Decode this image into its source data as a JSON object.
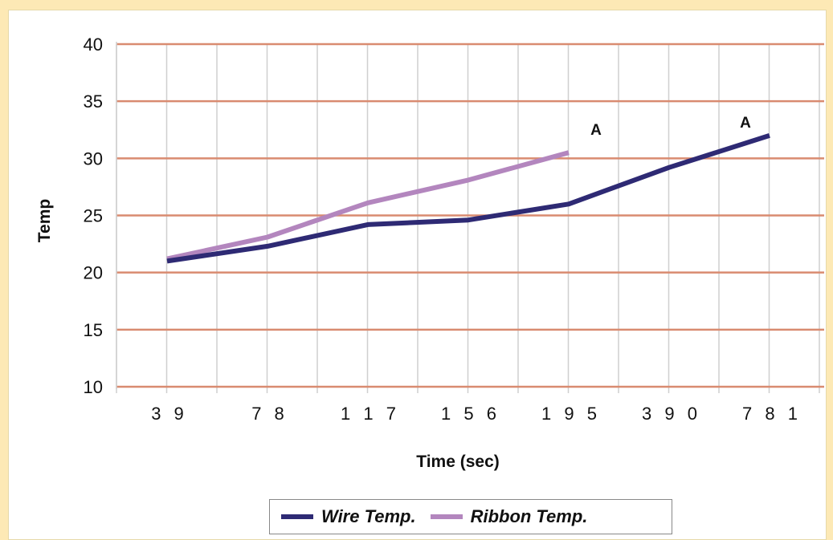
{
  "colors": {
    "page_background": "#FDE9B5",
    "plot_background": "#FFFFFF",
    "gridline_major": "#D98B70",
    "gridline_minor": "#CFCFCF",
    "wire": "#2E2A74",
    "ribbon": "#B386BE"
  },
  "chart_data": {
    "type": "line",
    "title": "",
    "xlabel": "Time (sec)",
    "ylabel": "Temp",
    "categories": [
      "39",
      "78",
      "117",
      "156",
      "195",
      "390",
      "781"
    ],
    "x_tick_labels": [
      "3 9",
      "7 8",
      "1 1 7",
      "1 5 6",
      "1 9 5",
      "3 9 0",
      "7 8 1"
    ],
    "yticks": [
      "40",
      "35",
      "30",
      "25",
      "20",
      "15",
      "10"
    ],
    "ylim": [
      10,
      40
    ],
    "ytick_values": [
      40,
      35,
      30,
      25,
      20,
      15,
      10
    ],
    "grid": true,
    "legend_position": "bottom",
    "series": [
      {
        "name": "Wire Temp.",
        "color": "#2E2A74",
        "values": [
          21.0,
          22.3,
          24.2,
          24.6,
          26.0,
          29.2,
          32.0
        ]
      },
      {
        "name": "Ribbon Temp.",
        "color": "#B386BE",
        "values": [
          21.2,
          23.1,
          26.1,
          28.1,
          30.5,
          null,
          null
        ]
      }
    ],
    "annotations": [
      {
        "text": "A",
        "series": "Ribbon Temp."
      },
      {
        "text": "A",
        "series": "Wire Temp."
      }
    ]
  }
}
